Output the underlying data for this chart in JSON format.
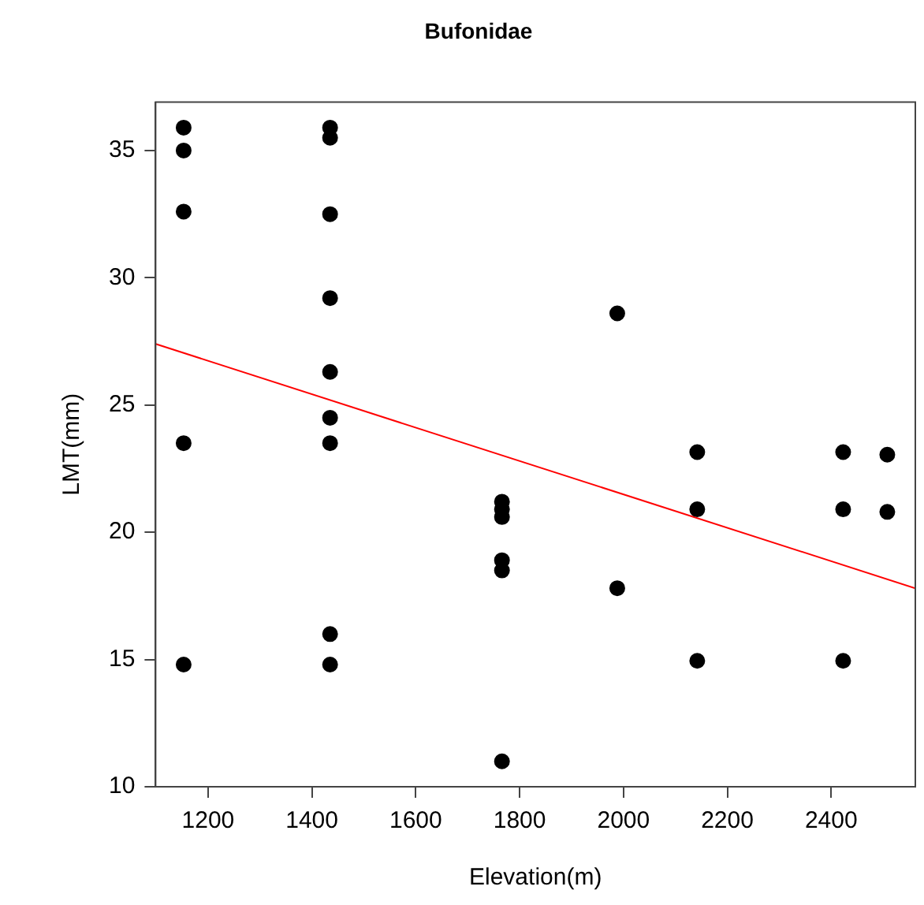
{
  "chart_data": {
    "type": "scatter",
    "title": "Bufonidae",
    "xlabel": "Elevation(m)",
    "ylabel": "LMT(mm)",
    "xlim": [
      1099,
      2562
    ],
    "xticks": [
      1200,
      1400,
      1600,
      1800,
      2000,
      2200,
      2400
    ],
    "ylim": [
      10,
      36.9
    ],
    "yticks": [
      10,
      15,
      20,
      25,
      30,
      35
    ],
    "grid": false,
    "legend": false,
    "series": [
      {
        "marker": "circle",
        "color": "#000000",
        "x": [
          1153,
          1153,
          1153,
          1153,
          1153,
          1435,
          1435,
          1435,
          1435,
          1435,
          1435,
          1435,
          1435,
          1435,
          1766,
          1766,
          1766,
          1766,
          1766,
          1766,
          1988,
          1988,
          2142,
          2142,
          2142,
          2423,
          2423,
          2423,
          2508,
          2508
        ],
        "values": [
          35.9,
          35.0,
          32.6,
          23.5,
          14.8,
          35.9,
          35.5,
          32.5,
          29.2,
          26.3,
          24.5,
          23.5,
          16.0,
          14.8,
          21.2,
          20.9,
          20.6,
          18.9,
          18.5,
          11.0,
          28.6,
          17.8,
          23.15,
          20.9,
          14.95,
          23.15,
          20.9,
          14.95,
          23.05,
          20.8
        ]
      },
      {
        "type": "line",
        "color": "#ff0000",
        "x": [
          1099,
          2562
        ],
        "values": [
          27.4,
          17.8
        ],
        "marker": "none",
        "line_style": "solid"
      }
    ]
  }
}
